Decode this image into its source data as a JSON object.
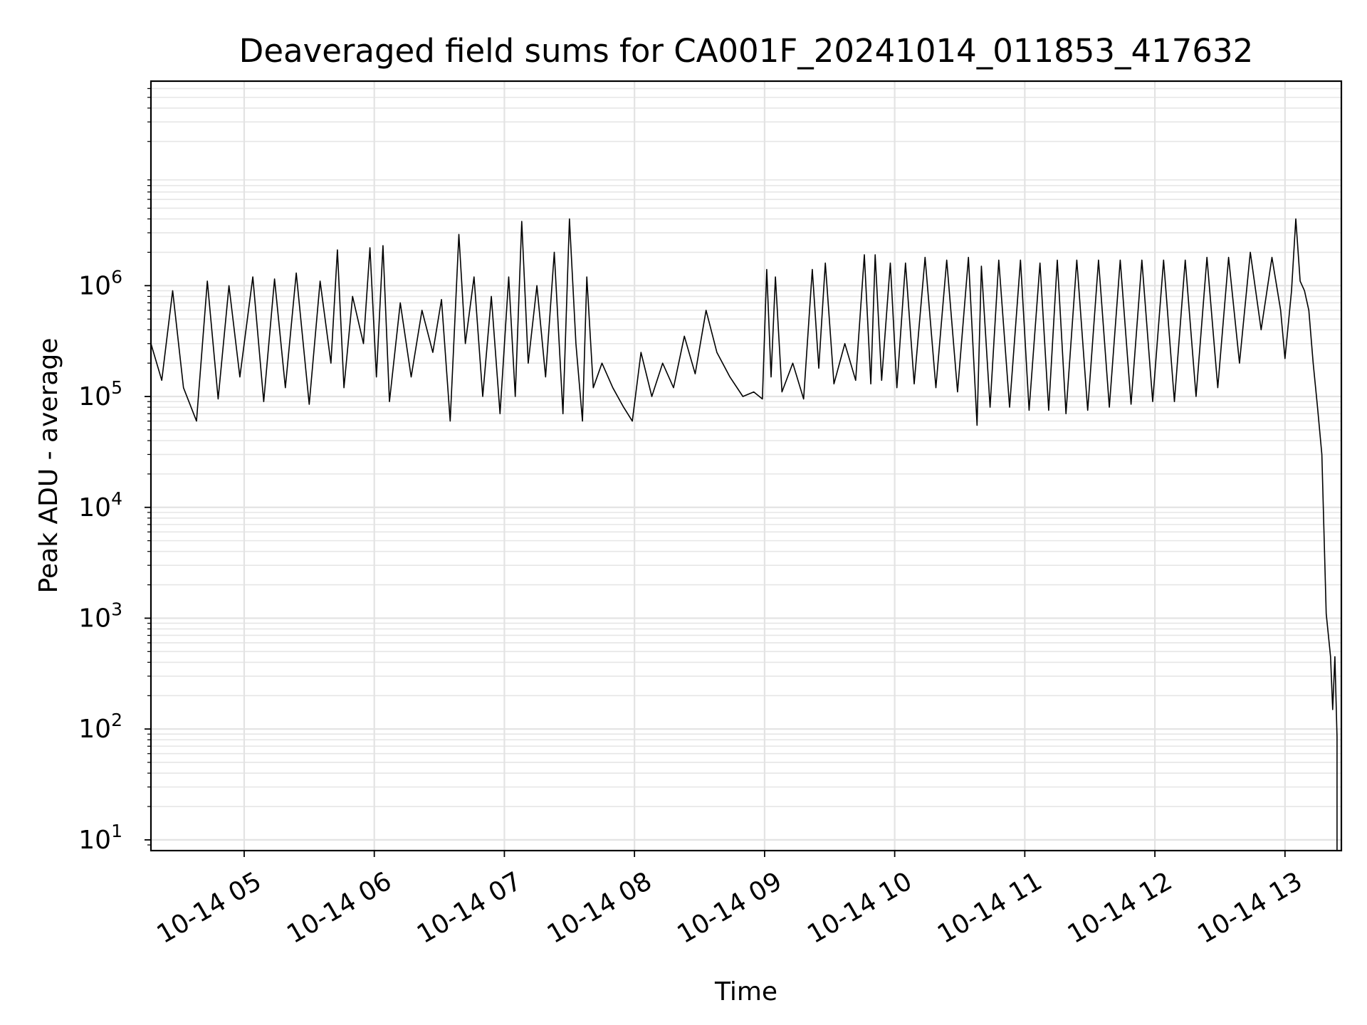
{
  "chart_data": {
    "type": "line",
    "title": "Deaveraged field sums for CA001F_20241014_011853_417632",
    "xlabel": "Time",
    "ylabel": "Peak ADU - average",
    "yscale": "log",
    "ylim": [
      8,
      70000000
    ],
    "xlim": [
      "2024-10-14 04:17",
      "2024-10-14 13:26"
    ],
    "grid": true,
    "x_ticks": [
      {
        "t": "2024-10-14 05:00",
        "label": "10-14 05"
      },
      {
        "t": "2024-10-14 06:00",
        "label": "10-14 06"
      },
      {
        "t": "2024-10-14 07:00",
        "label": "10-14 07"
      },
      {
        "t": "2024-10-14 08:00",
        "label": "10-14 08"
      },
      {
        "t": "2024-10-14 09:00",
        "label": "10-14 09"
      },
      {
        "t": "2024-10-14 10:00",
        "label": "10-14 10"
      },
      {
        "t": "2024-10-14 11:00",
        "label": "10-14 11"
      },
      {
        "t": "2024-10-14 12:00",
        "label": "10-14 12"
      },
      {
        "t": "2024-10-14 13:00",
        "label": "10-14 13"
      }
    ],
    "y_ticks": [
      {
        "value": 10,
        "base": "10",
        "exp": "1"
      },
      {
        "value": 100,
        "base": "10",
        "exp": "2"
      },
      {
        "value": 1000,
        "base": "10",
        "exp": "3"
      },
      {
        "value": 10000,
        "base": "10",
        "exp": "4"
      },
      {
        "value": 100000,
        "base": "10",
        "exp": "5"
      },
      {
        "value": 1000000,
        "base": "10",
        "exp": "6"
      }
    ],
    "series": [
      {
        "color": "#000000",
        "points": [
          [
            "2024-10-14 04:17",
            300000
          ],
          [
            "2024-10-14 04:22",
            140000
          ],
          [
            "2024-10-14 04:27",
            900000
          ],
          [
            "2024-10-14 04:32",
            120000
          ],
          [
            "2024-10-14 04:38",
            60000
          ],
          [
            "2024-10-14 04:43",
            1100000
          ],
          [
            "2024-10-14 04:48",
            95000
          ],
          [
            "2024-10-14 04:53",
            1000000
          ],
          [
            "2024-10-14 04:58",
            150000
          ],
          [
            "2024-10-14 05:04",
            1200000
          ],
          [
            "2024-10-14 05:09",
            90000
          ],
          [
            "2024-10-14 05:14",
            1150000
          ],
          [
            "2024-10-14 05:19",
            120000
          ],
          [
            "2024-10-14 05:24",
            1300000
          ],
          [
            "2024-10-14 05:30",
            85000
          ],
          [
            "2024-10-14 05:35",
            1100000
          ],
          [
            "2024-10-14 05:40",
            200000
          ],
          [
            "2024-10-14 05:43",
            2100000
          ],
          [
            "2024-10-14 05:46",
            120000
          ],
          [
            "2024-10-14 05:50",
            800000
          ],
          [
            "2024-10-14 05:55",
            300000
          ],
          [
            "2024-10-14 05:58",
            2200000
          ],
          [
            "2024-10-14 06:01",
            150000
          ],
          [
            "2024-10-14 06:04",
            2300000
          ],
          [
            "2024-10-14 06:07",
            90000
          ],
          [
            "2024-10-14 06:12",
            700000
          ],
          [
            "2024-10-14 06:17",
            150000
          ],
          [
            "2024-10-14 06:22",
            600000
          ],
          [
            "2024-10-14 06:27",
            250000
          ],
          [
            "2024-10-14 06:31",
            750000
          ],
          [
            "2024-10-14 06:35",
            60000
          ],
          [
            "2024-10-14 06:39",
            2900000
          ],
          [
            "2024-10-14 06:42",
            300000
          ],
          [
            "2024-10-14 06:46",
            1200000
          ],
          [
            "2024-10-14 06:50",
            100000
          ],
          [
            "2024-10-14 06:54",
            800000
          ],
          [
            "2024-10-14 06:58",
            70000
          ],
          [
            "2024-10-14 07:02",
            1200000
          ],
          [
            "2024-10-14 07:05",
            100000
          ],
          [
            "2024-10-14 07:08",
            3800000
          ],
          [
            "2024-10-14 07:11",
            200000
          ],
          [
            "2024-10-14 07:15",
            1000000
          ],
          [
            "2024-10-14 07:19",
            150000
          ],
          [
            "2024-10-14 07:23",
            2000000
          ],
          [
            "2024-10-14 07:27",
            70000
          ],
          [
            "2024-10-14 07:30",
            4000000
          ],
          [
            "2024-10-14 07:33",
            300000
          ],
          [
            "2024-10-14 07:36",
            60000
          ],
          [
            "2024-10-14 07:38",
            1200000
          ],
          [
            "2024-10-14 07:41",
            120000
          ],
          [
            "2024-10-14 07:45",
            200000
          ],
          [
            "2024-10-14 07:50",
            120000
          ],
          [
            "2024-10-14 07:55",
            80000
          ],
          [
            "2024-10-14 07:59",
            60000
          ],
          [
            "2024-10-14 08:03",
            250000
          ],
          [
            "2024-10-14 08:08",
            100000
          ],
          [
            "2024-10-14 08:13",
            200000
          ],
          [
            "2024-10-14 08:18",
            120000
          ],
          [
            "2024-10-14 08:23",
            350000
          ],
          [
            "2024-10-14 08:28",
            160000
          ],
          [
            "2024-10-14 08:33",
            600000
          ],
          [
            "2024-10-14 08:38",
            250000
          ],
          [
            "2024-10-14 08:44",
            150000
          ],
          [
            "2024-10-14 08:50",
            100000
          ],
          [
            "2024-10-14 08:55",
            110000
          ],
          [
            "2024-10-14 08:59",
            95000
          ],
          [
            "2024-10-14 09:01",
            1400000
          ],
          [
            "2024-10-14 09:03",
            150000
          ],
          [
            "2024-10-14 09:05",
            1200000
          ],
          [
            "2024-10-14 09:08",
            110000
          ],
          [
            "2024-10-14 09:13",
            200000
          ],
          [
            "2024-10-14 09:18",
            95000
          ],
          [
            "2024-10-14 09:22",
            1400000
          ],
          [
            "2024-10-14 09:25",
            180000
          ],
          [
            "2024-10-14 09:28",
            1600000
          ],
          [
            "2024-10-14 09:32",
            130000
          ],
          [
            "2024-10-14 09:37",
            300000
          ],
          [
            "2024-10-14 09:42",
            140000
          ],
          [
            "2024-10-14 09:46",
            1900000
          ],
          [
            "2024-10-14 09:49",
            130000
          ],
          [
            "2024-10-14 09:51",
            1900000
          ],
          [
            "2024-10-14 09:54",
            140000
          ],
          [
            "2024-10-14 09:58",
            1600000
          ],
          [
            "2024-10-14 10:01",
            120000
          ],
          [
            "2024-10-14 10:05",
            1600000
          ],
          [
            "2024-10-14 10:09",
            130000
          ],
          [
            "2024-10-14 10:14",
            1800000
          ],
          [
            "2024-10-14 10:19",
            120000
          ],
          [
            "2024-10-14 10:24",
            1700000
          ],
          [
            "2024-10-14 10:29",
            110000
          ],
          [
            "2024-10-14 10:34",
            1800000
          ],
          [
            "2024-10-14 10:38",
            55000
          ],
          [
            "2024-10-14 10:40",
            1500000
          ],
          [
            "2024-10-14 10:44",
            80000
          ],
          [
            "2024-10-14 10:48",
            1700000
          ],
          [
            "2024-10-14 10:53",
            80000
          ],
          [
            "2024-10-14 10:58",
            1700000
          ],
          [
            "2024-10-14 11:02",
            75000
          ],
          [
            "2024-10-14 11:07",
            1600000
          ],
          [
            "2024-10-14 11:11",
            75000
          ],
          [
            "2024-10-14 11:15",
            1700000
          ],
          [
            "2024-10-14 11:19",
            70000
          ],
          [
            "2024-10-14 11:24",
            1700000
          ],
          [
            "2024-10-14 11:29",
            75000
          ],
          [
            "2024-10-14 11:34",
            1700000
          ],
          [
            "2024-10-14 11:39",
            80000
          ],
          [
            "2024-10-14 11:44",
            1700000
          ],
          [
            "2024-10-14 11:49",
            85000
          ],
          [
            "2024-10-14 11:54",
            1700000
          ],
          [
            "2024-10-14 11:59",
            90000
          ],
          [
            "2024-10-14 12:04",
            1700000
          ],
          [
            "2024-10-14 12:09",
            90000
          ],
          [
            "2024-10-14 12:14",
            1700000
          ],
          [
            "2024-10-14 12:19",
            100000
          ],
          [
            "2024-10-14 12:24",
            1800000
          ],
          [
            "2024-10-14 12:29",
            120000
          ],
          [
            "2024-10-14 12:34",
            1800000
          ],
          [
            "2024-10-14 12:39",
            200000
          ],
          [
            "2024-10-14 12:44",
            2000000
          ],
          [
            "2024-10-14 12:49",
            400000
          ],
          [
            "2024-10-14 12:54",
            1800000
          ],
          [
            "2024-10-14 12:58",
            600000
          ],
          [
            "2024-10-14 13:00",
            220000
          ],
          [
            "2024-10-14 13:03",
            900000
          ],
          [
            "2024-10-14 13:05",
            4000000
          ],
          [
            "2024-10-14 13:07",
            1100000
          ],
          [
            "2024-10-14 13:09",
            900000
          ],
          [
            "2024-10-14 13:11",
            600000
          ],
          [
            "2024-10-14 13:13",
            200000
          ],
          [
            "2024-10-14 13:15",
            80000
          ],
          [
            "2024-10-14 13:17",
            30000
          ],
          [
            "2024-10-14 13:19",
            1100
          ],
          [
            "2024-10-14 13:21",
            450
          ],
          [
            "2024-10-14 13:22",
            150
          ],
          [
            "2024-10-14 13:23",
            450
          ],
          [
            "2024-10-14 13:24",
            85
          ],
          [
            "2024-10-14 13:24",
            8
          ]
        ]
      }
    ]
  }
}
